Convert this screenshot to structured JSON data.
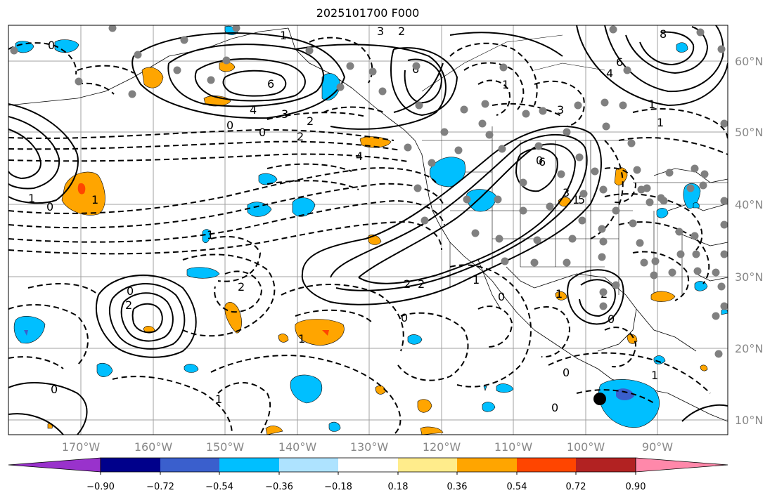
{
  "title": "2025101700 F000",
  "lat_labels": [
    "60°N",
    "50°N",
    "40°N",
    "30°N",
    "20°N",
    "10°N"
  ],
  "lon_labels": [
    "170°W",
    "160°W",
    "150°W",
    "140°W",
    "130°W",
    "120°W",
    "110°W",
    "100°W",
    "90°W"
  ],
  "colorbar": {
    "ticks": [
      "−0.90",
      "−0.72",
      "−0.54",
      "−0.36",
      "−0.18",
      "0.18",
      "0.36",
      "0.54",
      "0.72",
      "0.90"
    ],
    "colors": [
      "#9932cc",
      "#00008b",
      "#3a5fcd",
      "#00bfff",
      "#aee3ff",
      "#ffffff",
      "#ffec8b",
      "#ffa500",
      "#ff4500",
      "#b22222",
      "#ff88aa"
    ]
  },
  "contour_labels": [
    "1",
    "0",
    "1",
    "6",
    "4",
    "3",
    "2",
    "0",
    "0",
    "2",
    "4",
    "1",
    "3",
    "2",
    "6",
    "0",
    "1",
    "1",
    "8",
    "6",
    "4",
    "3",
    "1",
    "0",
    "1",
    "6",
    "3",
    "5",
    "2",
    "2",
    "2",
    "0",
    "2",
    "1",
    "1",
    "0",
    "2",
    "1",
    "0",
    "0",
    "0",
    "1",
    "0",
    "1",
    "0",
    "1"
  ]
}
